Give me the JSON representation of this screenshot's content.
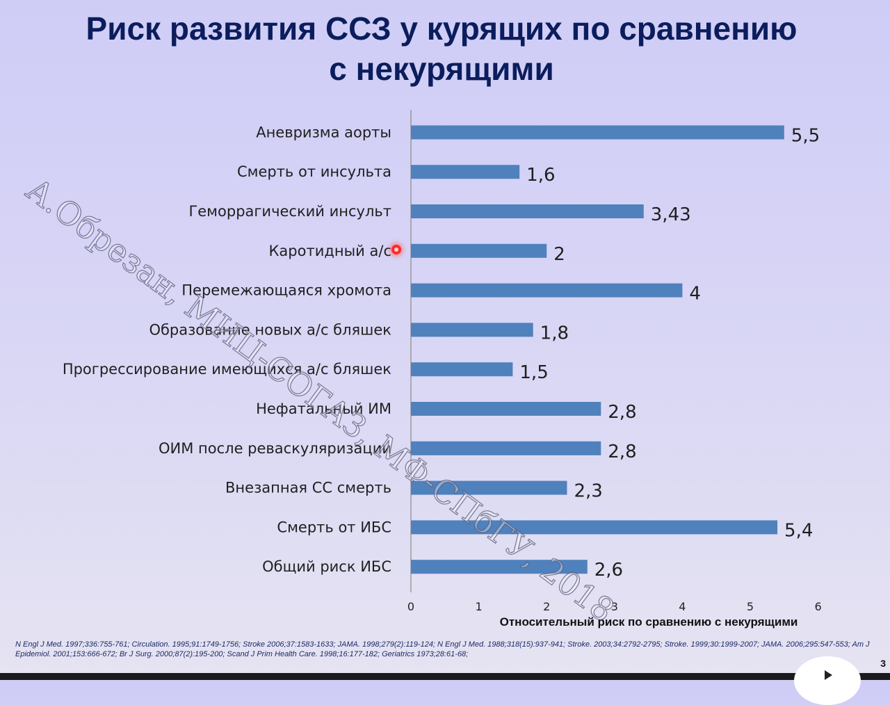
{
  "slide": {
    "title_line1": "Риск развития ССЗ у курящих по сравнению",
    "title_line2": "с некурящими",
    "watermark": "А.Обрезан, МИЦ-СОГАЗ, МФ-СПбГУ, 2018",
    "references": "N Engl J Med. 1997;336:755-761; Circulation. 1995;91:1749-1756; Stroke 2006;37:1583-1633; JAMA. 1998;279(2):119-124; N Engl J Med. 1988;318(15):937-941; Stroke. 2003;34:2792-2795; Stroke. 1999;30:1999-2007; JAMA. 2006;295:547-553; Am J Epidemiol. 2001;153:666-672; Br J Surg. 2000;87(2):195-200; Scand J Prim Health Care. 1998;16:177-182; Geriatrics 1973;28:61-68;",
    "slide_number": "3",
    "bar_color": "#4f81bd"
  },
  "chart_data": {
    "type": "bar",
    "orientation": "horizontal",
    "xlabel": "Относительный риск по сравнению с некурящими",
    "xlim": [
      0,
      6
    ],
    "xticks": [
      "0",
      "1",
      "2",
      "3",
      "4",
      "5",
      "6"
    ],
    "grid": false,
    "categories": [
      "Аневризма аорты",
      "Смерть от инсульта",
      "Геморрагический инсульт",
      "Каротидный а/с",
      "Перемежающаяся хромота",
      "Образование новых а/с бляшек",
      "Прогрессирование имеющихся а/с бляшек",
      "Нефатальный ИМ",
      "ОИМ после реваскуляризации",
      "Внезапная СС смерть",
      "Смерть от ИБС",
      "Общий риск ИБС"
    ],
    "values": [
      5.5,
      1.6,
      3.43,
      2,
      4,
      1.8,
      1.5,
      2.8,
      2.8,
      2.3,
      5.4,
      2.6
    ],
    "value_labels": [
      "5,5",
      "1,6",
      "3,43",
      "2",
      "4",
      "1,8",
      "1,5",
      "2,8",
      "2,8",
      "2,3",
      "5,4",
      "2,6"
    ]
  }
}
